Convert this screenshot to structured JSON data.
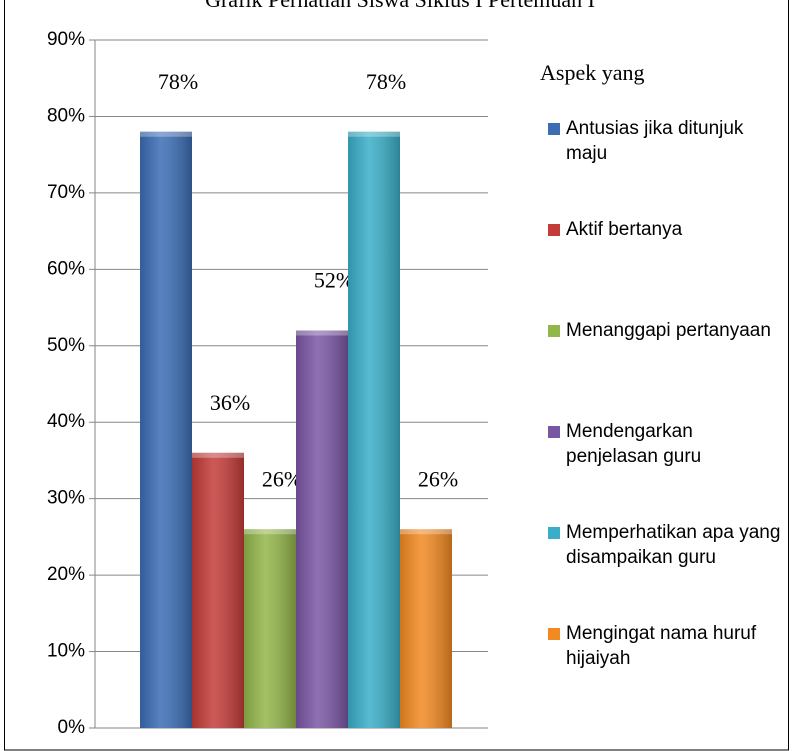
{
  "chart_data": {
    "type": "bar",
    "title": "Grafik Perhatian Siswa Siklus I Pertemuan I",
    "legend_title": "Aspek yang",
    "series": [
      {
        "name": "Antusias jika ditunjuk maju",
        "color": "#3b6db5",
        "values": [
          78
        ],
        "value_labels": [
          "78%"
        ]
      },
      {
        "name": "Aktif bertanya",
        "color": "#c43c39",
        "values": [
          36
        ],
        "value_labels": [
          "36%"
        ]
      },
      {
        "name": "Menanggapi pertanyaan",
        "color": "#93b64a",
        "values": [
          26
        ],
        "value_labels": [
          "26%"
        ]
      },
      {
        "name": "Mendengarkan penjelasan guru",
        "color": "#7a57a4",
        "values": [
          52
        ],
        "value_labels": [
          "52%"
        ]
      },
      {
        "name": "Memperhatikan apa yang disampaikan guru",
        "color": "#3aaec8",
        "values": [
          78
        ],
        "value_labels": [
          "78%"
        ]
      },
      {
        "name": "Mengingat nama huruf hijaiyah",
        "color": "#f28a22",
        "values": [
          26
        ],
        "value_labels": [
          "26%"
        ]
      }
    ],
    "ylim": [
      0,
      90
    ],
    "yticks": [
      {
        "value": 0,
        "label": "0%"
      },
      {
        "value": 10,
        "label": "10%"
      },
      {
        "value": 20,
        "label": "20%"
      },
      {
        "value": 30,
        "label": "30%"
      },
      {
        "value": 40,
        "label": "40%"
      },
      {
        "value": 50,
        "label": "50%"
      },
      {
        "value": 60,
        "label": "60%"
      },
      {
        "value": 70,
        "label": "70%"
      },
      {
        "value": 80,
        "label": "80%"
      },
      {
        "value": 90,
        "label": "90%"
      }
    ],
    "grid": true,
    "legend": "right"
  }
}
